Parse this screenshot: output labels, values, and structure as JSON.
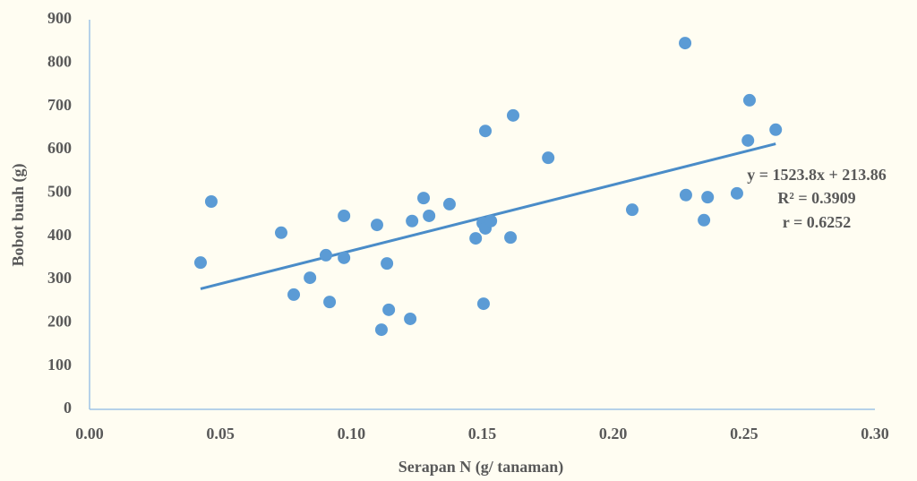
{
  "chart_data": {
    "type": "scatter",
    "x_label": "Serapan N (g/ tanaman)",
    "y_label": "Bobot buah (g)",
    "color": "#5b9bd5",
    "grid": false,
    "xlim": [
      0,
      0.3
    ],
    "ylim": [
      0,
      900
    ],
    "xticks": [
      {
        "value": 0,
        "label": "0.00"
      },
      {
        "value": 0.05,
        "label": "0.05"
      },
      {
        "value": 0.1,
        "label": "0.10"
      },
      {
        "value": 0.15,
        "label": "0.15"
      },
      {
        "value": 0.2,
        "label": "0.20"
      },
      {
        "value": 0.25,
        "label": "0.25"
      },
      {
        "value": 0.3,
        "label": "0.30"
      }
    ],
    "yticks": [
      0,
      100,
      200,
      300,
      400,
      500,
      600,
      700,
      800,
      900
    ],
    "x": [
      0.0424,
      0.0465,
      0.0732,
      0.078,
      0.0842,
      0.0903,
      0.0917,
      0.0972,
      0.0972,
      0.1098,
      0.1115,
      0.1136,
      0.1143,
      0.1225,
      0.1232,
      0.1276,
      0.1297,
      0.1375,
      0.1475,
      0.1505,
      0.1502,
      0.1512,
      0.1533,
      0.1512,
      0.1608,
      0.1618,
      0.1752,
      0.2073,
      0.2275,
      0.2278,
      0.2347,
      0.2361,
      0.2473,
      0.2515,
      0.2521,
      0.2621
    ],
    "values": [
      339,
      480,
      408,
      265,
      304,
      356,
      248,
      447,
      350,
      426,
      184,
      337,
      230,
      209,
      435,
      488,
      447,
      474,
      395,
      244,
      430,
      418,
      435,
      643,
      397,
      679,
      581,
      461,
      846,
      495,
      437,
      490,
      499,
      621,
      714,
      646
    ],
    "trendline": {
      "slope": 1523.8,
      "intercept": 213.86,
      "color": "#4a8cc8",
      "equation": "y = 1523.8x + 213.86",
      "r2_label": "R² = 0.3909",
      "r_label": "r = 0.6252"
    }
  }
}
